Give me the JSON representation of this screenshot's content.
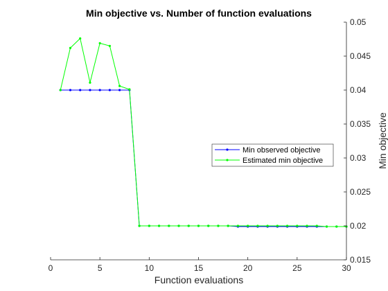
{
  "chart_data": {
    "type": "line",
    "title": "Min objective vs. Number of function evaluations",
    "xlabel": "Function evaluations",
    "ylabel": "Min objective",
    "xlim": [
      0,
      30
    ],
    "ylim": [
      0.015,
      0.05
    ],
    "xticks": [
      0,
      5,
      10,
      15,
      20,
      25,
      30
    ],
    "yticks": [
      0.015,
      0.02,
      0.025,
      0.03,
      0.035,
      0.04,
      0.045,
      0.05
    ],
    "y_axis_side": "right",
    "grid": false,
    "legend_position": "right-middle",
    "series": [
      {
        "name": "Min observed objective",
        "color": "#0000ff",
        "x": [
          1,
          2,
          3,
          4,
          5,
          6,
          7,
          8,
          9,
          10,
          11,
          12,
          13,
          14,
          15,
          16,
          17,
          18,
          19,
          20,
          21,
          22,
          23,
          24,
          25,
          26,
          27,
          28,
          29,
          30
        ],
        "values": [
          0.04,
          0.04,
          0.04,
          0.04,
          0.04,
          0.04,
          0.04,
          0.04,
          0.02,
          0.02,
          0.02,
          0.02,
          0.02,
          0.02,
          0.02,
          0.02,
          0.02,
          0.02,
          0.0199,
          0.0199,
          0.0199,
          0.0199,
          0.0199,
          0.0199,
          0.0199,
          0.0199,
          0.0199,
          0.0199,
          0.0199,
          0.0199
        ]
      },
      {
        "name": "Estimated min objective",
        "color": "#00ff00",
        "x": [
          1,
          2,
          3,
          4,
          5,
          6,
          7,
          8,
          9,
          10,
          11,
          12,
          13,
          14,
          15,
          16,
          17,
          18,
          19,
          20,
          21,
          22,
          23,
          24,
          25,
          26,
          27,
          28,
          29,
          30
        ],
        "values": [
          0.04,
          0.0462,
          0.0476,
          0.0411,
          0.0469,
          0.0465,
          0.0406,
          0.0401,
          0.02,
          0.02,
          0.02,
          0.02,
          0.02,
          0.02,
          0.02,
          0.02,
          0.02,
          0.02,
          0.02,
          0.02,
          0.02,
          0.02,
          0.02,
          0.02,
          0.02,
          0.02,
          0.02,
          0.0199,
          0.0199,
          0.0199
        ]
      }
    ]
  }
}
